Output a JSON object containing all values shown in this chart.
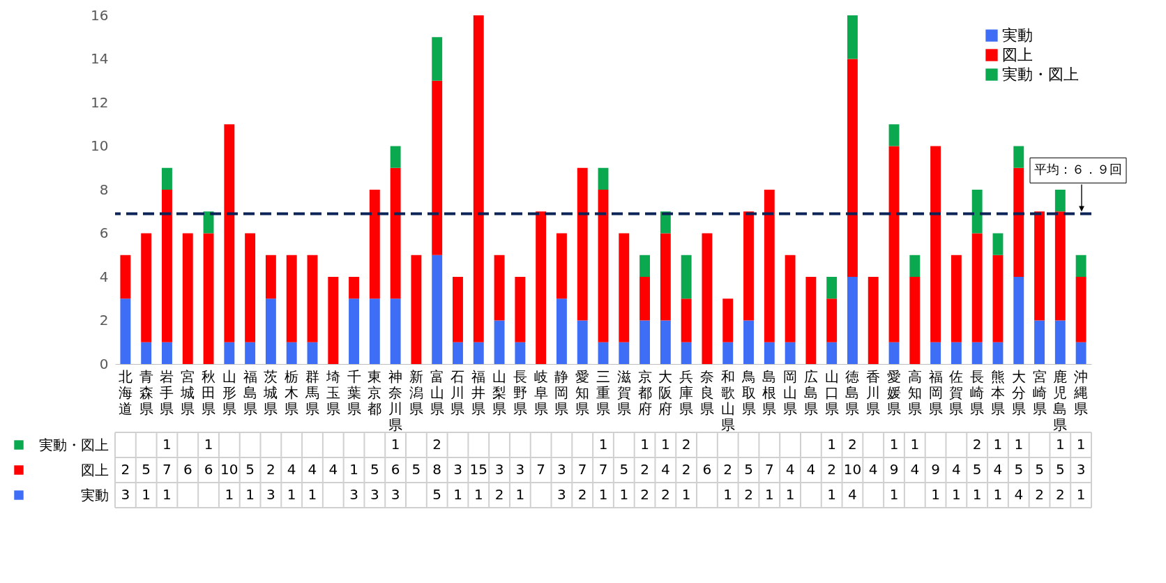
{
  "chart_data": {
    "type": "bar",
    "stacked": true,
    "data_labels": true,
    "legend": "top right",
    "grid": false,
    "categories": [
      "北海道",
      "青森県",
      "岩手県",
      "宮城県",
      "秋田県",
      "山形県",
      "福島県",
      "茨城県",
      "栃木県",
      "群馬県",
      "埼玉県",
      "千葉県",
      "東京都",
      "神奈川県",
      "新潟県",
      "富山県",
      "石川県",
      "福井県",
      "山梨県",
      "長野県",
      "岐阜県",
      "静岡県",
      "愛知県",
      "三重県",
      "滋賀県",
      "京都府",
      "大阪府",
      "兵庫県",
      "奈良県",
      "和歌山県",
      "鳥取県",
      "島根県",
      "岡山県",
      "広島県",
      "山口県",
      "徳島県",
      "香川県",
      "愛媛県",
      "高知県",
      "福岡県",
      "佐賀県",
      "長崎県",
      "熊本県",
      "大分県",
      "宮崎県",
      "鹿児島県",
      "沖縄県"
    ],
    "series": [
      {
        "name": "実動",
        "color": "#3d6ef5",
        "values": [
          3,
          1,
          1,
          null,
          null,
          1,
          1,
          3,
          1,
          1,
          null,
          3,
          3,
          3,
          null,
          5,
          1,
          1,
          2,
          1,
          null,
          3,
          2,
          1,
          1,
          2,
          2,
          1,
          null,
          1,
          2,
          1,
          1,
          null,
          1,
          4,
          null,
          1,
          null,
          1,
          1,
          1,
          1,
          4,
          2,
          2,
          1
        ]
      },
      {
        "name": "図上",
        "color": "#ff0000",
        "values": [
          2,
          5,
          7,
          6,
          6,
          10,
          5,
          2,
          4,
          4,
          4,
          1,
          5,
          6,
          5,
          8,
          3,
          15,
          3,
          3,
          7,
          3,
          7,
          7,
          5,
          2,
          4,
          2,
          6,
          2,
          5,
          7,
          4,
          4,
          2,
          10,
          4,
          9,
          4,
          9,
          4,
          5,
          4,
          5,
          5,
          5,
          3
        ]
      },
      {
        "name": "実動・図上",
        "color": "#0aa84f",
        "values": [
          null,
          null,
          1,
          null,
          1,
          null,
          null,
          null,
          null,
          null,
          null,
          null,
          null,
          1,
          null,
          2,
          null,
          null,
          null,
          null,
          null,
          null,
          null,
          1,
          null,
          1,
          1,
          2,
          null,
          null,
          null,
          null,
          null,
          null,
          1,
          2,
          null,
          1,
          1,
          null,
          null,
          2,
          1,
          1,
          null,
          1,
          1
        ]
      }
    ],
    "ylim": [
      0,
      16
    ],
    "yticks": [
      0,
      2,
      4,
      6,
      8,
      10,
      12,
      14,
      16
    ],
    "ref_lines": [
      {
        "axis": "y",
        "value": 6.9,
        "label": "平均：６．９回",
        "color": "#0c2357",
        "line_style": "dashed"
      }
    ]
  }
}
